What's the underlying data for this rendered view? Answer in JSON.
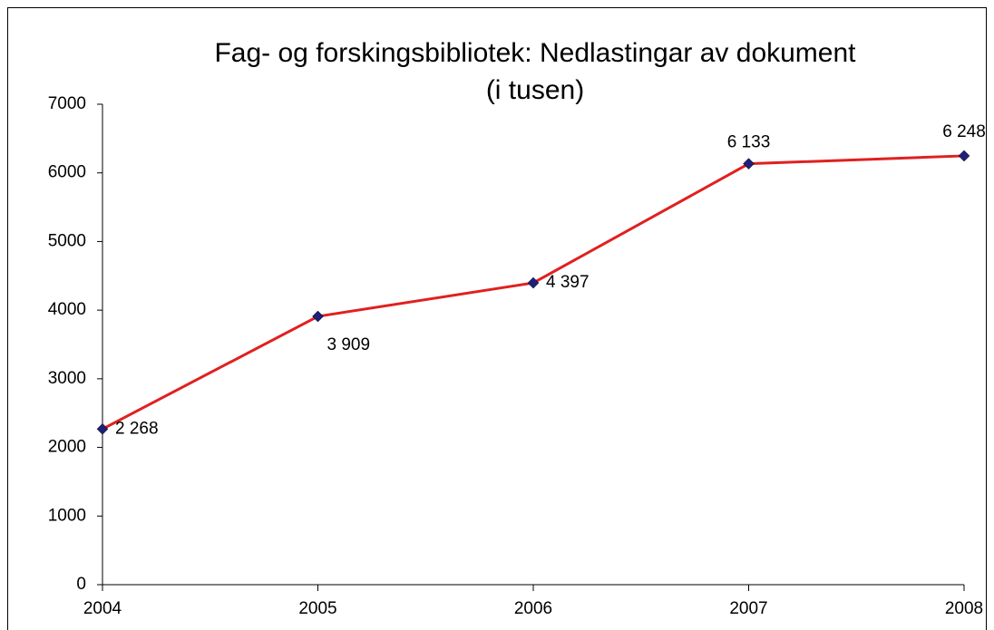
{
  "chart_data": {
    "type": "line",
    "title": "Fag- og forskingsbibliotek: Nedlastingar av dokument",
    "subtitle": "(i tusen)",
    "categories": [
      "2004",
      "2005",
      "2006",
      "2007",
      "2008"
    ],
    "series": [
      {
        "color": "#e02020",
        "marker_color": "#1f1f7a",
        "values": [
          2268,
          3909,
          4397,
          6133,
          6248
        ],
        "value_labels": [
          "2 268",
          "3 909",
          "4 397",
          "6 133",
          "6 248"
        ]
      }
    ],
    "ylim": [
      0,
      7000
    ],
    "yticks": [
      0,
      1000,
      2000,
      3000,
      4000,
      5000,
      6000,
      7000
    ]
  }
}
